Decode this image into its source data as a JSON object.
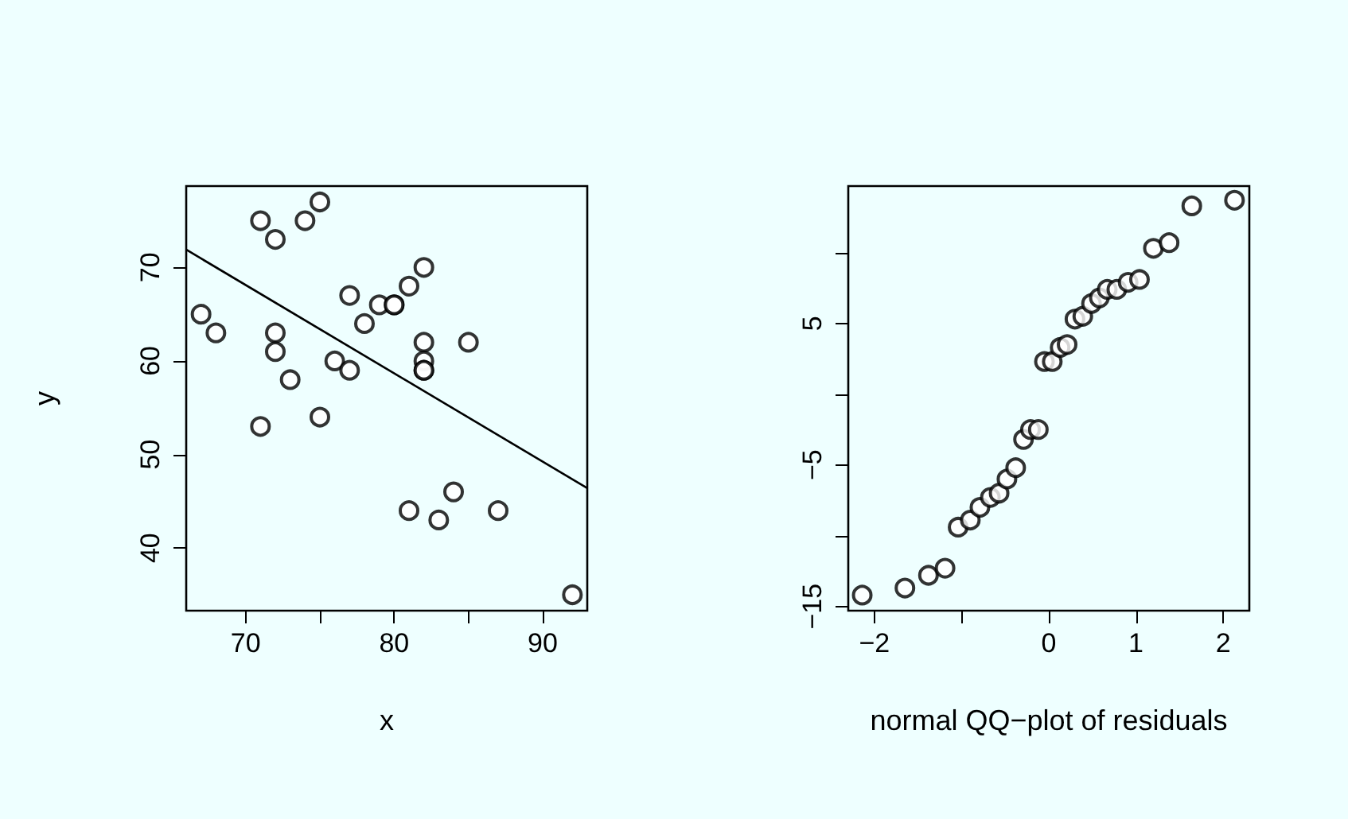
{
  "chart_data": [
    {
      "type": "scatter",
      "xlabel": "x",
      "ylabel": "y",
      "grid": false,
      "xlim": [
        66,
        93
      ],
      "ylim": [
        33.3,
        78.7
      ],
      "xticks": [
        70,
        {
          "value": 75,
          "label": null
        },
        80,
        {
          "value": 85,
          "label": null
        },
        90
      ],
      "yticks": [
        40,
        50,
        60,
        70
      ],
      "series": [
        {
          "marker": "circle",
          "color": "#000000",
          "x": [
            67,
            68,
            71,
            72,
            74,
            75,
            72,
            72,
            73,
            71,
            75,
            76,
            77,
            77,
            78,
            79,
            80,
            80,
            81,
            82,
            82,
            82,
            82,
            82,
            85,
            81,
            83,
            84,
            87,
            92
          ],
          "values": [
            65,
            63,
            75,
            73,
            75,
            77,
            63,
            61,
            58,
            53,
            54,
            60,
            59,
            67,
            64,
            66,
            66,
            66,
            68,
            70,
            62,
            60,
            59,
            59,
            62,
            44,
            43,
            46,
            44,
            35
          ]
        },
        {
          "type": "line",
          "color": "#000000",
          "x": [
            66,
            93
          ],
          "values": [
            71.9,
            46.4
          ]
        }
      ]
    },
    {
      "type": "scatter",
      "xlabel": "normal QQ−plot of residuals",
      "marker": "circle",
      "grid": false,
      "xlim": [
        -2.3,
        2.3
      ],
      "ylim": [
        -15.3,
        14.7
      ],
      "xticks": [
        {
          "value": -2,
          "label": "−2"
        },
        {
          "value": -1,
          "label": null
        },
        0,
        1,
        2
      ],
      "yticks": [
        {
          "value": -15,
          "label": "−15"
        },
        {
          "value": -10,
          "label": null
        },
        {
          "value": -5,
          "label": "−5"
        },
        {
          "value": 0,
          "label": null
        },
        5,
        {
          "value": 10,
          "label": null
        }
      ],
      "series": [
        {
          "color": "#000000",
          "x": [
            -2.14,
            -1.65,
            -1.38,
            -1.19,
            -1.04,
            -0.9,
            -0.79,
            -0.67,
            -0.57,
            -0.48,
            -0.38,
            -0.29,
            -0.21,
            -0.12,
            -0.05,
            0.04,
            0.13,
            0.21,
            0.3,
            0.39,
            0.49,
            0.58,
            0.67,
            0.78,
            0.91,
            1.04,
            1.2,
            1.38,
            1.64,
            2.13
          ],
          "values": [
            -14.2,
            -13.7,
            -12.8,
            -12.3,
            -9.4,
            -8.9,
            -8,
            -7.3,
            -7,
            -6,
            -5.2,
            -3.2,
            -2.5,
            -2.5,
            2.3,
            2.3,
            3.3,
            3.5,
            5.3,
            5.5,
            6.4,
            6.8,
            7.4,
            7.4,
            7.9,
            8.1,
            10.3,
            10.7,
            13.3,
            13.7
          ]
        }
      ]
    }
  ]
}
